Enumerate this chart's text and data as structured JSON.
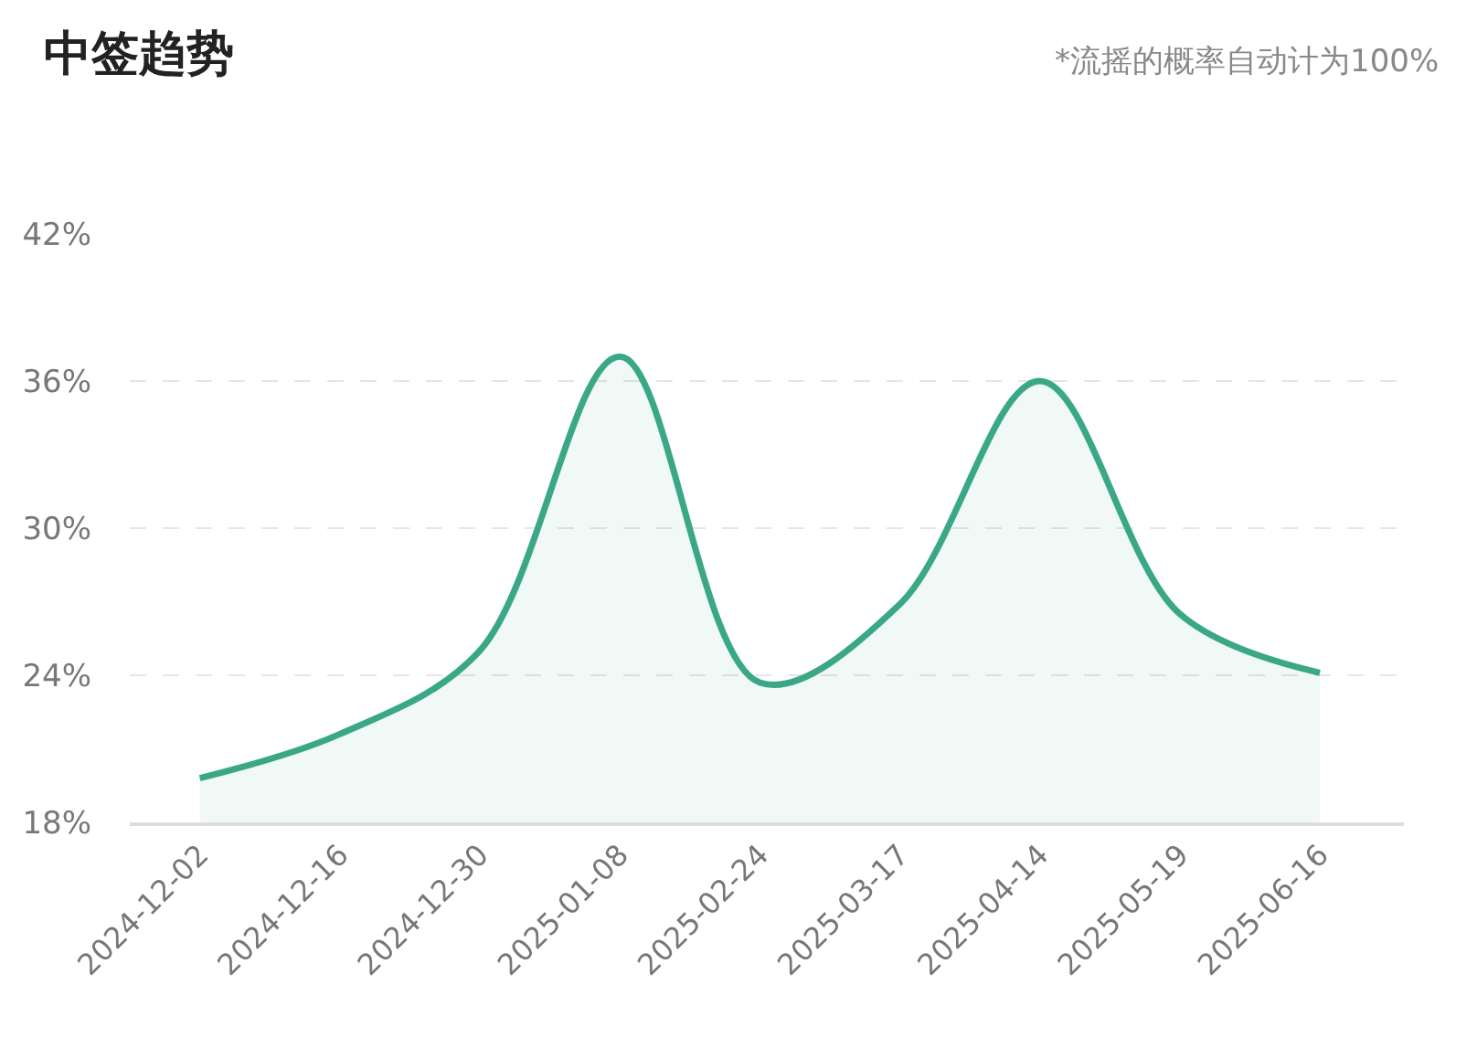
{
  "chart_data": {
    "type": "area",
    "title": "中签趋势",
    "annotations": [
      "*流摇的概率自动计为100%"
    ],
    "categories": [
      "2024-12-02",
      "2024-12-16",
      "2024-12-30",
      "2025-01-08",
      "2025-02-24",
      "2025-03-17",
      "2025-04-14",
      "2025-05-19",
      "2025-06-16"
    ],
    "series": [
      {
        "color": "#3aa887",
        "values": [
          19.8,
          21.6,
          25.0,
          37.0,
          23.7,
          26.9,
          36.0,
          26.5,
          24.1
        ]
      }
    ],
    "ylim": [
      18,
      42
    ],
    "yticks": [
      {
        "value": 18,
        "label": "18%"
      },
      {
        "value": 24,
        "label": "24%"
      },
      {
        "value": 30,
        "label": "30%"
      },
      {
        "value": 36,
        "label": "36%"
      },
      {
        "value": 42,
        "label": "42%"
      }
    ],
    "grid": "y",
    "marker": "none",
    "line_style": "solid"
  }
}
